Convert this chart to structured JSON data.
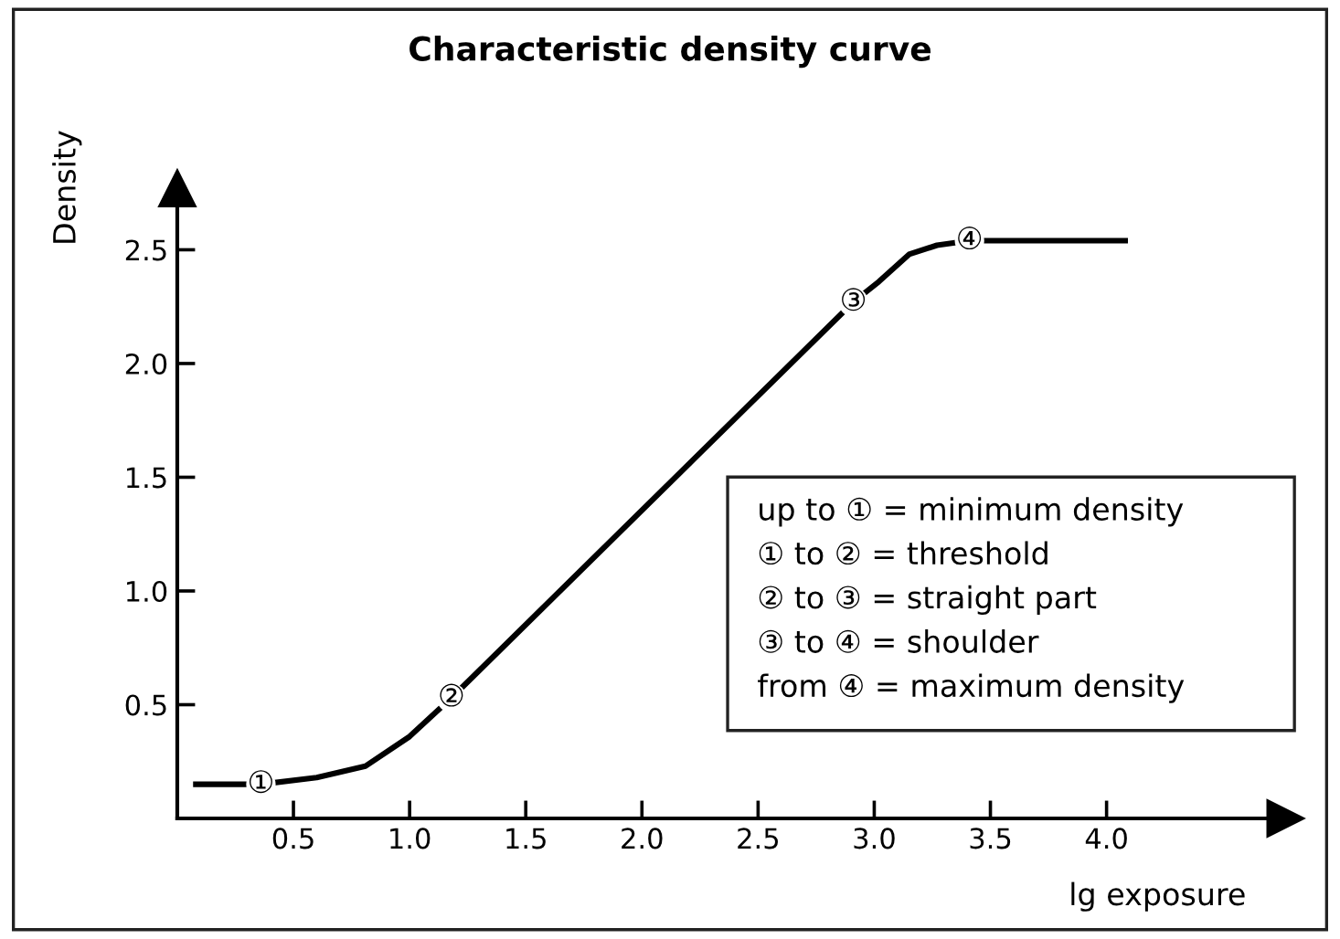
{
  "chart_data": {
    "type": "line",
    "title": "Characteristic density curve",
    "xlabel": "lg exposure",
    "ylabel": "Density",
    "x": [
      0.08,
      0.36,
      0.6,
      0.81,
      1.0,
      1.18,
      2.91,
      3.02,
      3.15,
      3.27,
      3.41,
      4.08
    ],
    "series": [
      {
        "color": "#000000",
        "values": [
          0.15,
          0.15,
          0.18,
          0.23,
          0.36,
          0.53,
          2.27,
          2.36,
          2.48,
          2.52,
          2.54,
          2.54
        ]
      }
    ],
    "xlim": [
      0,
      4.77
    ],
    "ylim": [
      0,
      2.77
    ],
    "xticks": [
      0.5,
      {
        "value": 1,
        "label": "1.0"
      },
      1.5,
      {
        "value": 2,
        "label": "2.0"
      },
      2.5,
      {
        "value": 3,
        "label": "3.0"
      },
      3.5,
      {
        "value": 4,
        "label": "4.0"
      }
    ],
    "yticks": [
      0.5,
      {
        "value": 1,
        "label": "1.0"
      },
      1.5,
      {
        "value": 2,
        "label": "2.0"
      },
      2.5
    ],
    "grid": false,
    "legend": false,
    "annotations": [
      {
        "text": "①",
        "x": 0.36,
        "y": 0.15
      },
      {
        "text": "②",
        "x": 1.18,
        "y": 0.53
      },
      {
        "text": "③",
        "x": 2.91,
        "y": 2.27
      },
      {
        "text": "④",
        "x": 3.41,
        "y": 2.54
      },
      "up to ① = minimum density",
      "① to ② = threshold",
      "② to ③ = straight part",
      "③ to ④ = shoulder",
      "from ④ = maximum density"
    ]
  }
}
